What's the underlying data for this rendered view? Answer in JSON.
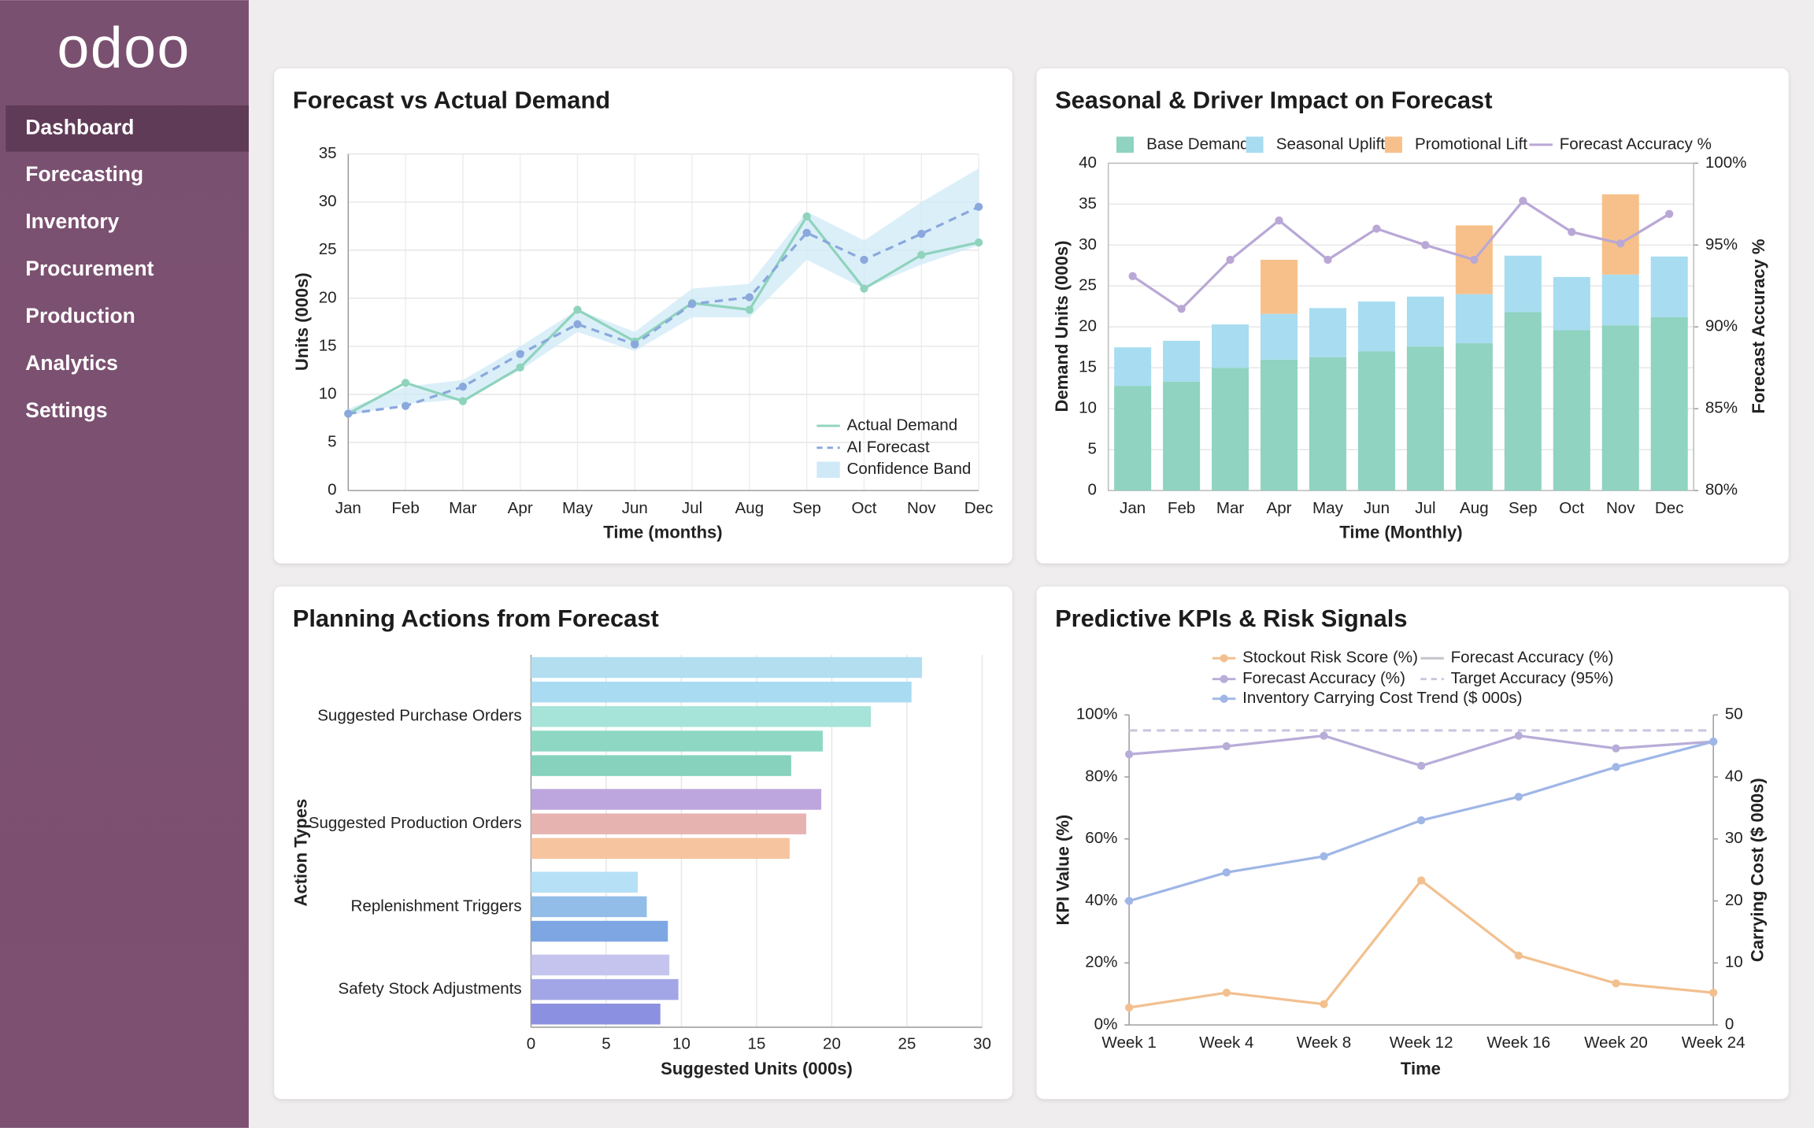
{
  "brand": "odoo",
  "nav": [
    "Dashboard",
    "Forecasting",
    "Inventory",
    "Procurement",
    "Production",
    "Analytics",
    "Settings"
  ],
  "chart_data": [
    {
      "type": "line",
      "title": "Forecast vs Actual Demand",
      "x_label": "Time (months)",
      "y_label": "Units (000s)",
      "categories": [
        "Jan",
        "Feb",
        "Mar",
        "Apr",
        "May",
        "Jun",
        "Jul",
        "Aug",
        "Sep",
        "Oct",
        "Nov",
        "Dec"
      ],
      "series": [
        {
          "name": "Actual Demand",
          "color": "#8fd3bd",
          "markers": true,
          "values": [
            8,
            11.2,
            9.3,
            12.8,
            18.8,
            15.5,
            19.5,
            18.8,
            28.5,
            21,
            24.5,
            25.8
          ]
        },
        {
          "name": "AI Forecast",
          "color": "#8aa8dc",
          "dash": true,
          "markers": true,
          "values": [
            8,
            8.8,
            10.8,
            14.2,
            17.3,
            15.2,
            19.4,
            20.1,
            26.8,
            24,
            26.7,
            29.5
          ]
        },
        {
          "name": "Confidence Band",
          "color": "#cfe9f7",
          "lower": [
            7.8,
            9,
            9.5,
            12.5,
            16.5,
            14.5,
            18,
            18,
            24,
            21,
            23.5,
            25.5
          ],
          "upper": [
            8.5,
            10.8,
            11.5,
            15,
            18.8,
            16.5,
            21,
            21.5,
            29,
            26,
            30,
            33.5
          ]
        }
      ],
      "ylim": [
        0,
        35
      ],
      "yticks": [
        0,
        5,
        10,
        15,
        20,
        25,
        30,
        35
      ],
      "grid": true,
      "legend": "lower right"
    },
    {
      "type": "bar",
      "stacked": true,
      "title": "Seasonal & Driver Impact on Forecast",
      "x_label": "Time (Monthly)",
      "y_label": "Demand Units (000s)",
      "y2_label": "Forecast Accuracy %",
      "categories": [
        "Jan",
        "Feb",
        "Mar",
        "Apr",
        "May",
        "Jun",
        "Jul",
        "Aug",
        "Sep",
        "Oct",
        "Nov",
        "Dec"
      ],
      "series": [
        {
          "name": "Base Demand",
          "color": "#8fd3c0",
          "values": [
            12.8,
            13.3,
            15,
            16,
            16.3,
            17,
            17.6,
            18,
            21.8,
            19.6,
            20.2,
            21.2
          ]
        },
        {
          "name": "Seasonal Uplift",
          "color": "#a8dcf0",
          "values": [
            4.7,
            5,
            5.3,
            5.6,
            6,
            6.1,
            6.1,
            6,
            6.9,
            6.5,
            6.2,
            7.4
          ]
        },
        {
          "name": "Promotional Lift",
          "color": "#f7c08a",
          "values": [
            0,
            0,
            0,
            6.6,
            0,
            0,
            0,
            8.4,
            0,
            0,
            9.8,
            0
          ]
        },
        {
          "name": "Forecast Accuracy %",
          "color": "#b9a8d6",
          "axis": "y2",
          "markers": true,
          "values": [
            93.1,
            91.1,
            94.1,
            96.5,
            94.1,
            96,
            95,
            94.1,
            97.7,
            95.8,
            95.1,
            96.9
          ]
        }
      ],
      "ylim": [
        0,
        40
      ],
      "yticks": [
        0,
        5,
        10,
        15,
        20,
        25,
        30,
        35,
        40
      ],
      "y2lim": [
        80,
        100
      ],
      "y2ticks": [
        {
          "value": 80,
          "label": "80%"
        },
        {
          "value": 85,
          "label": "85%"
        },
        {
          "value": 90,
          "label": "90%"
        },
        {
          "value": 95,
          "label": "95%"
        },
        {
          "value": 100,
          "label": "100%"
        }
      ],
      "grid": true,
      "legend": "top"
    },
    {
      "type": "barh",
      "title": "Planning Actions from Forecast",
      "x_label": "Suggested Units (000s)",
      "y_label": "Action Types",
      "groups": [
        {
          "name": "Suggested Purchase Orders",
          "values": [
            26,
            25.3,
            22.6,
            19.4,
            17.3
          ],
          "colors": [
            "#b3def0",
            "#a9dcf3",
            "#a6e3d8",
            "#8ed8c3",
            "#86d2bd"
          ]
        },
        {
          "name": "Suggested Production Orders",
          "values": [
            19.3,
            18.3,
            17.2
          ],
          "colors": [
            "#bda6de",
            "#e6b3b0",
            "#f7c4a0"
          ]
        },
        {
          "name": "Replenishment Triggers",
          "values": [
            7.1,
            7.7,
            9.1
          ],
          "colors": [
            "#b6e0f5",
            "#92bde8",
            "#7ea6e3"
          ]
        },
        {
          "name": "Safety Stock Adjustments",
          "values": [
            9.2,
            9.8,
            8.6
          ],
          "colors": [
            "#c4c4ee",
            "#a2a6e6",
            "#8c90e0"
          ]
        }
      ],
      "xlim": [
        0,
        30
      ],
      "xticks": [
        0,
        5,
        10,
        15,
        20,
        25,
        30
      ],
      "grid": true
    },
    {
      "type": "line",
      "title": "Predictive KPIs & Risk Signals",
      "x_label": "Time",
      "y_label": "KPI Value (%)",
      "y2_label": "Carrying Cost ($ 000s)",
      "categories": [
        "Week 1",
        "Week 4",
        "Week 8",
        "Week 12",
        "Week 16",
        "Week 20",
        "Week 24"
      ],
      "series": [
        {
          "name": "Stockout Risk Score (%)",
          "color": "#f2c08f",
          "markers": true,
          "values": [
            5.6,
            10.4,
            6.7,
            46.6,
            22.4,
            13.4,
            10.4
          ]
        },
        {
          "name": "Forecast Accuracy (%)",
          "color": "#b8acd8",
          "markers": true,
          "values": [
            87.3,
            89.9,
            93.3,
            83.6,
            93.3,
            89.2,
            91.4
          ]
        },
        {
          "name": "Target Accuracy (95%)",
          "color": "#cbc5de",
          "dash": true,
          "values": [
            95,
            95,
            95,
            95,
            95,
            95,
            95
          ]
        },
        {
          "name": "Inventory Carrying Cost Trend ($ 000s)",
          "color": "#9fb6e6",
          "axis": "y2",
          "markers": true,
          "values": [
            20,
            24.6,
            27.2,
            33,
            36.8,
            41.6,
            45.7
          ]
        }
      ],
      "legend_extra": [
        {
          "name": "Forecast Accuracy (%)",
          "color": "#c3c3cc"
        }
      ],
      "ylim": [
        0,
        100
      ],
      "yticks": [
        {
          "value": 0,
          "label": "0%"
        },
        {
          "value": 20,
          "label": "20%"
        },
        {
          "value": 40,
          "label": "40%"
        },
        {
          "value": 60,
          "label": "60%"
        },
        {
          "value": 80,
          "label": "80%"
        },
        {
          "value": 100,
          "label": "100%"
        }
      ],
      "y2lim": [
        0,
        50
      ],
      "y2ticks": [
        0,
        10,
        20,
        30,
        40,
        50
      ],
      "grid": false,
      "legend": "top"
    }
  ]
}
